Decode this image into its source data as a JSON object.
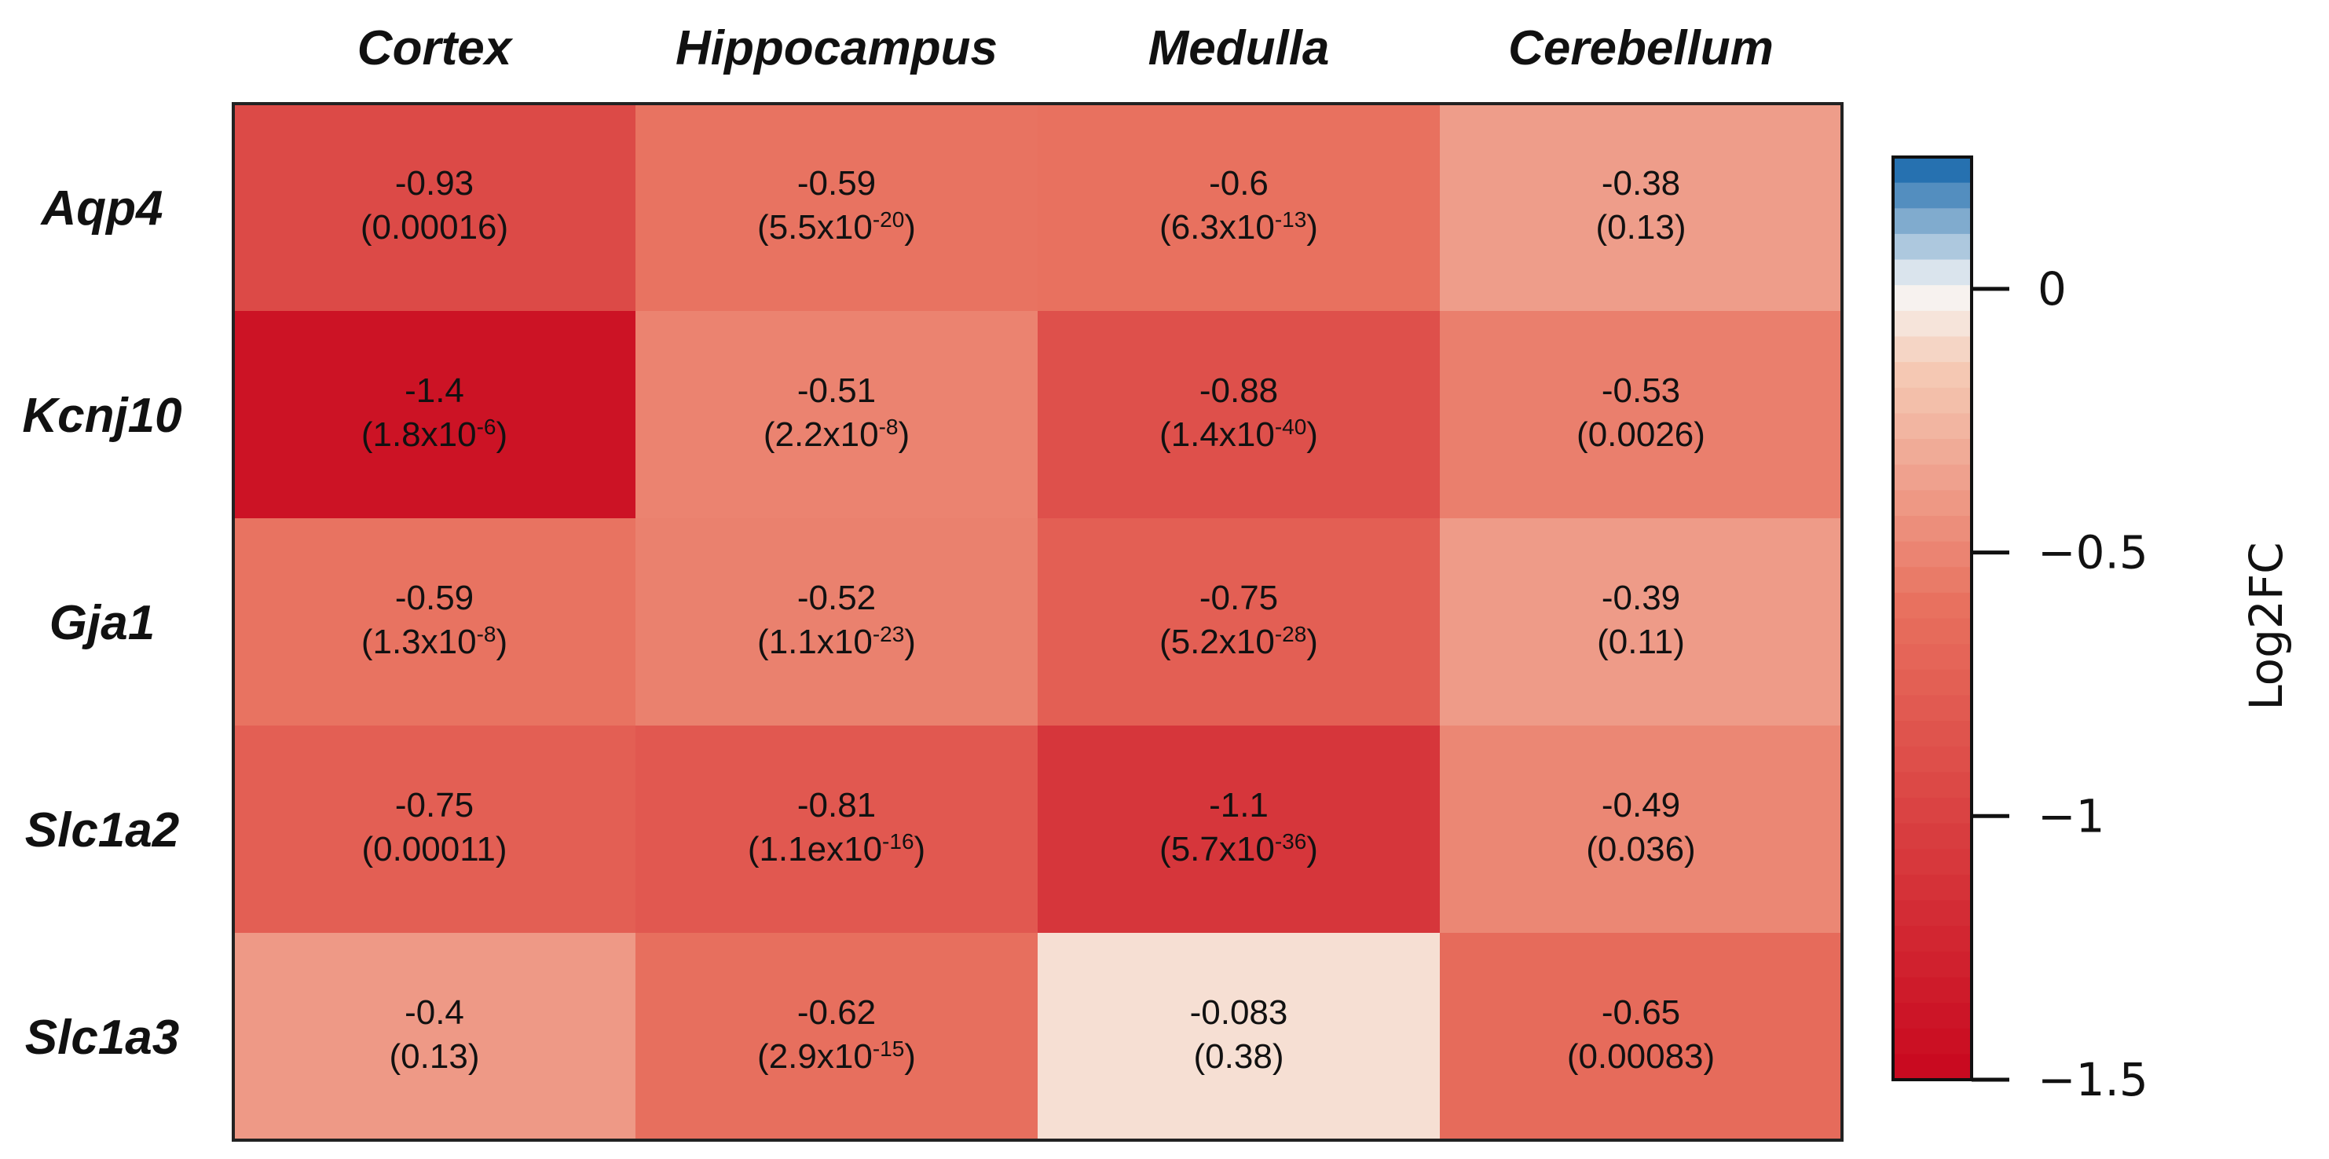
{
  "chart_data": {
    "type": "heatmap",
    "columns": [
      "Cortex",
      "Hippocampus",
      "Medulla",
      "Cerebellum"
    ],
    "rows": [
      "Aqp4",
      "Kcnj10",
      "Gja1",
      "Slc1a2",
      "Slc1a3"
    ],
    "values": [
      [
        -0.93,
        -0.59,
        -0.6,
        -0.38
      ],
      [
        -1.4,
        -0.51,
        -0.88,
        -0.53
      ],
      [
        -0.59,
        -0.52,
        -0.75,
        -0.39
      ],
      [
        -0.75,
        -0.81,
        -1.1,
        -0.49
      ],
      [
        -0.4,
        -0.62,
        -0.083,
        -0.65
      ]
    ],
    "value_labels": [
      [
        "-0.93",
        "-0.59",
        "-0.6",
        "-0.38"
      ],
      [
        "-1.4",
        "-0.51",
        "-0.88",
        "-0.53"
      ],
      [
        "-0.59",
        "-0.52",
        "-0.75",
        "-0.39"
      ],
      [
        "-0.75",
        "-0.81",
        "-1.1",
        "-0.49"
      ],
      [
        "-0.4",
        "-0.62",
        "-0.083",
        "-0.65"
      ]
    ],
    "pvalues": [
      [
        {
          "m": "0.00016",
          "e": ""
        },
        {
          "m": "5.5x10",
          "e": "-20"
        },
        {
          "m": "6.3x10",
          "e": "-13"
        },
        {
          "m": "0.13",
          "e": ""
        }
      ],
      [
        {
          "m": "1.8x10",
          "e": "-6"
        },
        {
          "m": "2.2x10",
          "e": "-8"
        },
        {
          "m": "1.4x10",
          "e": "-40"
        },
        {
          "m": "0.0026",
          "e": ""
        }
      ],
      [
        {
          "m": "1.3x10",
          "e": "-8"
        },
        {
          "m": "1.1x10",
          "e": "-23"
        },
        {
          "m": "5.2x10",
          "e": "-28"
        },
        {
          "m": "0.11",
          "e": ""
        }
      ],
      [
        {
          "m": "0.00011",
          "e": ""
        },
        {
          "m": "1.1ex10",
          "e": "-16"
        },
        {
          "m": "5.7x10",
          "e": "-36"
        },
        {
          "m": "0.036",
          "e": ""
        }
      ],
      [
        {
          "m": "0.13",
          "e": ""
        },
        {
          "m": "2.9x10",
          "e": "-15"
        },
        {
          "m": "0.38",
          "e": ""
        },
        {
          "m": "0.00083",
          "e": ""
        }
      ]
    ],
    "colorbar": {
      "label": "Log2FC",
      "range": [
        -1.5,
        0.25
      ],
      "ticks": [
        0,
        -0.5,
        -1,
        -1.5
      ],
      "tick_labels": [
        "0",
        "−0.5",
        "−1",
        "−1.5"
      ]
    },
    "colors": {
      "min": "#c8071e",
      "mid_low": "#e8715f",
      "light": "#f5cbb6",
      "zero": "#f7f7f7",
      "blue": "#1063a8"
    }
  }
}
